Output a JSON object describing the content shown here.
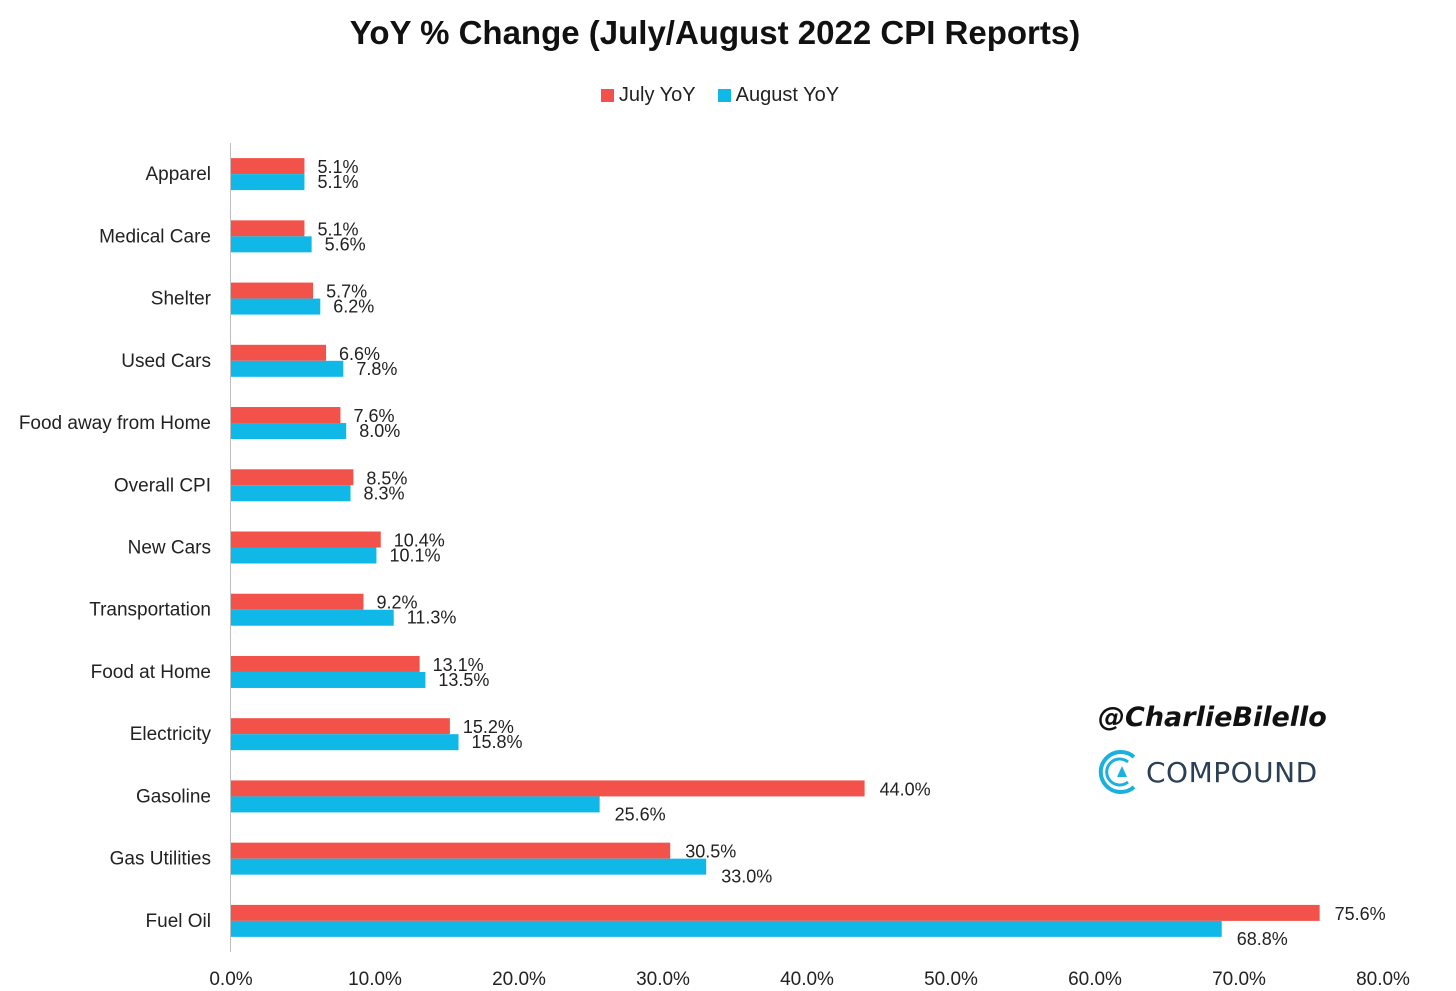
{
  "colors": {
    "july": "#f2524a",
    "august": "#10b8e8",
    "axis": "#bfbfbf"
  },
  "watermark": {
    "handle": "@CharlieBilello",
    "brand": "COMPOUND",
    "brand_icon": "compound-logo-icon"
  },
  "chart_data": {
    "type": "bar",
    "orientation": "horizontal",
    "title": "YoY % Change (July/August 2022 CPI Reports)",
    "legend_position": "top-center",
    "categories": [
      "Apparel",
      "Medical Care",
      "Shelter",
      "Used Cars",
      "Food away from Home",
      "Overall CPI",
      "New Cars",
      "Transportation",
      "Food at Home",
      "Electricity",
      "Gasoline",
      "Gas Utilities",
      "Fuel Oil"
    ],
    "series": [
      {
        "name": "July YoY",
        "values": [
          5.1,
          5.1,
          5.7,
          6.6,
          7.6,
          8.5,
          10.4,
          9.2,
          13.1,
          15.2,
          44.0,
          30.5,
          75.6
        ],
        "labels": [
          "5.1%",
          "5.1%",
          "5.7%",
          "6.6%",
          "7.6%",
          "8.5%",
          "10.4%",
          "9.2%",
          "13.1%",
          "15.2%",
          "44.0%",
          "30.5%",
          "75.6%"
        ]
      },
      {
        "name": "August YoY",
        "values": [
          5.1,
          5.6,
          6.2,
          7.8,
          8.0,
          8.3,
          10.1,
          11.3,
          13.5,
          15.8,
          25.6,
          33.0,
          68.8
        ],
        "labels": [
          "5.1%",
          "5.6%",
          "6.2%",
          "7.8%",
          "8.0%",
          "8.3%",
          "10.1%",
          "11.3%",
          "13.5%",
          "15.8%",
          "25.6%",
          "33.0%",
          "68.8%"
        ]
      }
    ],
    "xlim": [
      0,
      80
    ],
    "xticks": [
      "0.0%",
      "10.0%",
      "20.0%",
      "30.0%",
      "40.0%",
      "50.0%",
      "60.0%",
      "70.0%",
      "80.0%"
    ],
    "grid": false
  }
}
